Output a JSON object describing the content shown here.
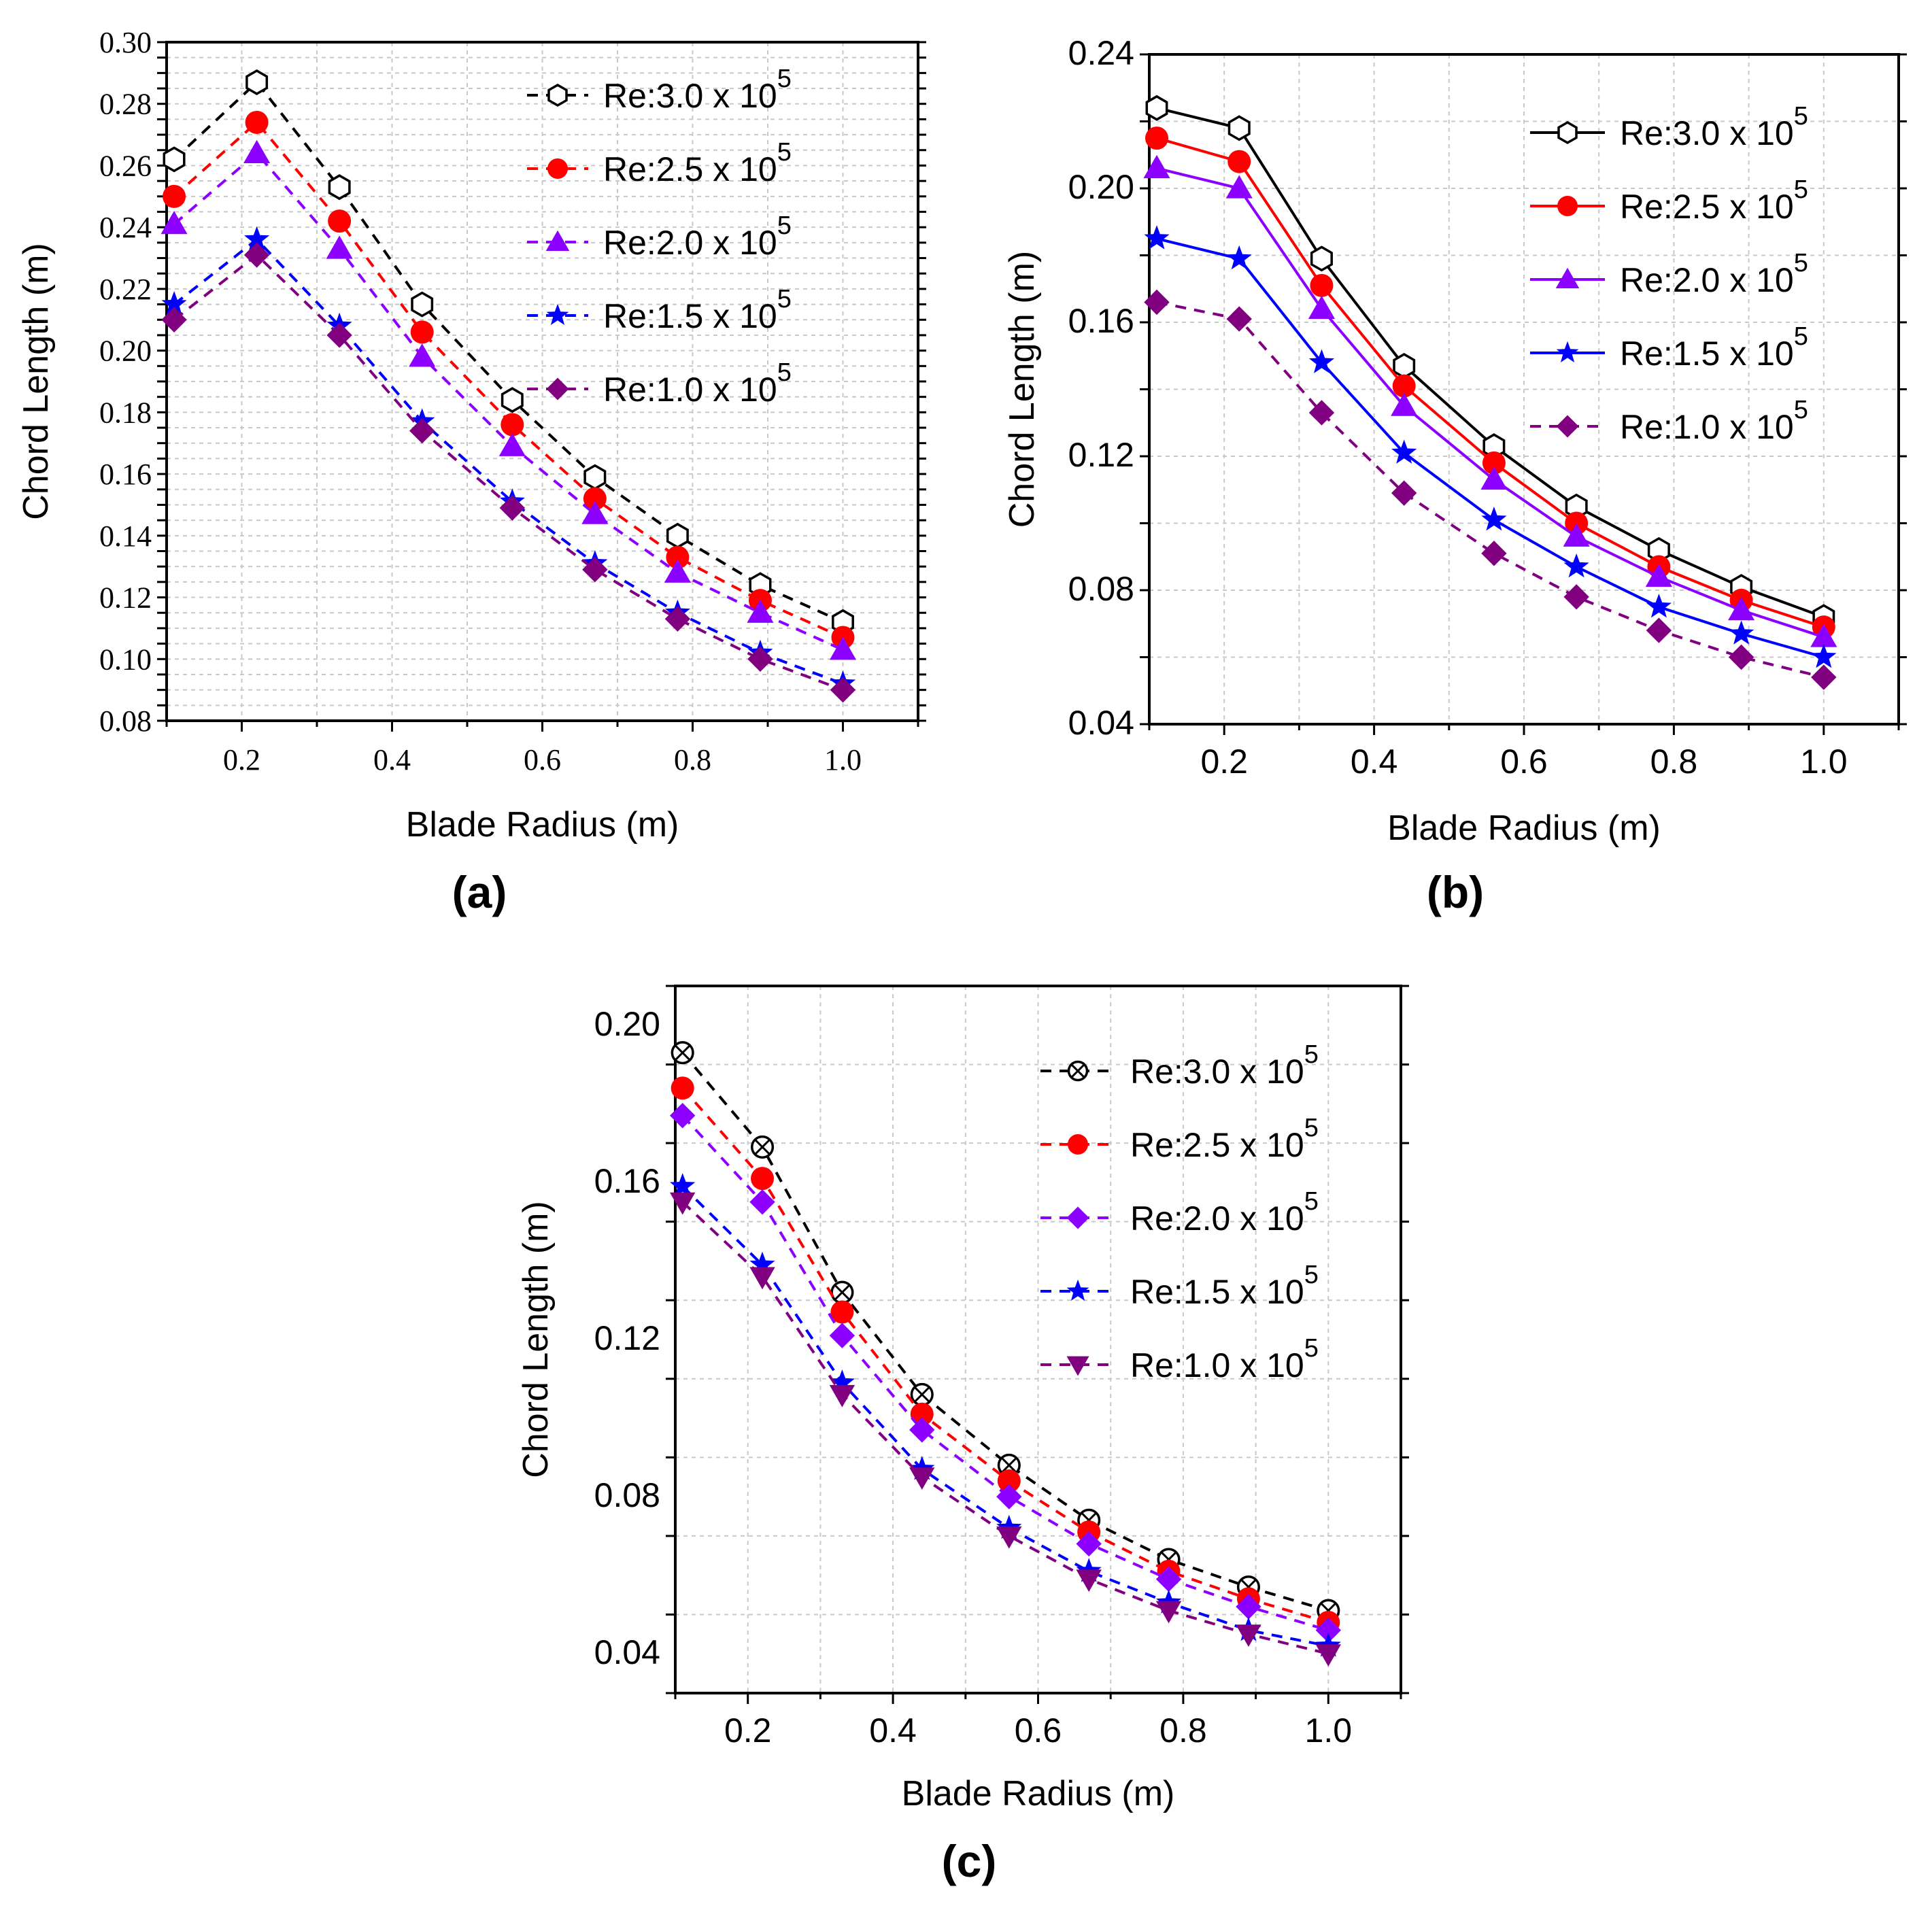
{
  "colors": {
    "re30": "#000000",
    "re25": "#ff0000",
    "re20": "#8b00ff",
    "re15": "#0000ff",
    "re10": "#800080"
  },
  "chart_data": [
    {
      "panel": "(a)",
      "type": "line",
      "line_style": "dashed",
      "xlabel": "Blade Radius (m)",
      "ylabel": "Chord Length (m)",
      "xlim": [
        0.1,
        1.1
      ],
      "ylim": [
        0.08,
        0.3
      ],
      "xticks": [
        "0.2",
        "0.4",
        "0.6",
        "0.8",
        "1.0"
      ],
      "yticks": [
        "0.08",
        "0.10",
        "0.12",
        "0.14",
        "0.16",
        "0.18",
        "0.20",
        "0.22",
        "0.24",
        "0.26",
        "0.28",
        "0.30"
      ],
      "grid": true,
      "legend_position": "top-right",
      "x": [
        0.11,
        0.22,
        0.33,
        0.44,
        0.56,
        0.67,
        0.78,
        0.89,
        1.0
      ],
      "series": [
        {
          "name": "Re:3.0 x 10",
          "sup": "5",
          "marker": "hexagon-open",
          "color": "#000000",
          "values": [
            0.262,
            0.287,
            0.253,
            0.215,
            0.184,
            0.159,
            0.14,
            0.124,
            0.112
          ]
        },
        {
          "name": "Re:2.5 x 10",
          "sup": "5",
          "marker": "circle",
          "color": "#ff0000",
          "values": [
            0.25,
            0.274,
            0.242,
            0.206,
            0.176,
            0.152,
            0.133,
            0.119,
            0.107
          ]
        },
        {
          "name": "Re:2.0 x 10",
          "sup": "5",
          "marker": "triangle",
          "color": "#8b00ff",
          "values": [
            0.241,
            0.264,
            0.233,
            0.198,
            0.169,
            0.147,
            0.128,
            0.115,
            0.103
          ]
        },
        {
          "name": "Re:1.5 x 10",
          "sup": "5",
          "marker": "star",
          "color": "#0000ff",
          "values": [
            0.215,
            0.236,
            0.208,
            0.177,
            0.151,
            0.131,
            0.115,
            0.102,
            0.092
          ]
        },
        {
          "name": "Re:1.0 x 10",
          "sup": "5",
          "marker": "diamond",
          "color": "#800080",
          "values": [
            0.21,
            0.231,
            0.205,
            0.174,
            0.149,
            0.129,
            0.113,
            0.1,
            0.09
          ]
        }
      ]
    },
    {
      "panel": "(b)",
      "type": "line",
      "line_style": "solid",
      "xlabel": "Blade Radius (m)",
      "ylabel": "Chord Length (m)",
      "xlim": [
        0.1,
        1.1
      ],
      "ylim": [
        0.04,
        0.24
      ],
      "xticks": [
        "0.2",
        "0.4",
        "0.6",
        "0.8",
        "1.0"
      ],
      "yticks": [
        "0.04",
        "0.08",
        "0.12",
        "0.16",
        "0.20",
        "0.24"
      ],
      "grid": true,
      "legend_position": "top-right",
      "x": [
        0.11,
        0.22,
        0.33,
        0.44,
        0.56,
        0.67,
        0.78,
        0.89,
        1.0
      ],
      "series": [
        {
          "name": "Re:3.0 x 10",
          "sup": "5",
          "marker": "hexagon-open",
          "color": "#000000",
          "values": [
            0.224,
            0.218,
            0.179,
            0.147,
            0.123,
            0.105,
            0.092,
            0.081,
            0.072
          ]
        },
        {
          "name": "Re:2.5 x 10",
          "sup": "5",
          "marker": "circle",
          "color": "#ff0000",
          "values": [
            0.215,
            0.208,
            0.171,
            0.141,
            0.118,
            0.1,
            0.087,
            0.077,
            0.069
          ]
        },
        {
          "name": "Re:2.0 x 10",
          "sup": "5",
          "marker": "triangle",
          "color": "#8b00ff",
          "values": [
            0.206,
            0.2,
            0.164,
            0.135,
            0.113,
            0.096,
            0.084,
            0.074,
            0.066
          ]
        },
        {
          "name": "Re:1.5 x 10",
          "sup": "5",
          "marker": "star",
          "color": "#0000ff",
          "values": [
            0.185,
            0.179,
            0.148,
            0.121,
            0.101,
            0.087,
            0.075,
            0.067,
            0.06
          ]
        },
        {
          "name": "Re:1.0 x 10",
          "sup": "5",
          "marker": "diamond",
          "color": "#800080",
          "values": [
            0.166,
            0.161,
            0.133,
            0.109,
            0.091,
            0.078,
            0.068,
            0.06,
            0.054
          ],
          "line_style": "dashed"
        }
      ]
    },
    {
      "panel": "(c)",
      "type": "line",
      "line_style": "dashed",
      "xlabel": "Blade Radius (m)",
      "ylabel": "Chord Length (m)",
      "xlim": [
        0.1,
        1.1
      ],
      "ylim": [
        0.03,
        0.21
      ],
      "xticks": [
        "0.2",
        "0.4",
        "0.6",
        "0.8",
        "1.0"
      ],
      "yticks": [
        "0.04",
        "0.08",
        "0.12",
        "0.16",
        "0.20"
      ],
      "grid": true,
      "legend_position": "top-right",
      "x": [
        0.11,
        0.22,
        0.33,
        0.44,
        0.56,
        0.67,
        0.78,
        0.89,
        1.0
      ],
      "series": [
        {
          "name": "Re:3.0 x 10",
          "sup": "5",
          "marker": "circle-x",
          "color": "#000000",
          "values": [
            0.193,
            0.169,
            0.132,
            0.106,
            0.088,
            0.074,
            0.064,
            0.057,
            0.051
          ]
        },
        {
          "name": "Re:2.5 x 10",
          "sup": "5",
          "marker": "circle",
          "color": "#ff0000",
          "values": [
            0.184,
            0.161,
            0.127,
            0.101,
            0.084,
            0.071,
            0.061,
            0.054,
            0.048
          ]
        },
        {
          "name": "Re:2.0 x 10",
          "sup": "5",
          "marker": "diamond",
          "color": "#8b00ff",
          "values": [
            0.177,
            0.155,
            0.121,
            0.097,
            0.08,
            0.068,
            0.059,
            0.052,
            0.046
          ]
        },
        {
          "name": "Re:1.5 x 10",
          "sup": "5",
          "marker": "star",
          "color": "#0000ff",
          "values": [
            0.159,
            0.139,
            0.109,
            0.087,
            0.072,
            0.061,
            0.053,
            0.046,
            0.042
          ]
        },
        {
          "name": "Re:1.0 x 10",
          "sup": "5",
          "marker": "triangle-down",
          "color": "#800080",
          "values": [
            0.155,
            0.136,
            0.106,
            0.085,
            0.07,
            0.059,
            0.051,
            0.045,
            0.04
          ]
        }
      ]
    }
  ]
}
